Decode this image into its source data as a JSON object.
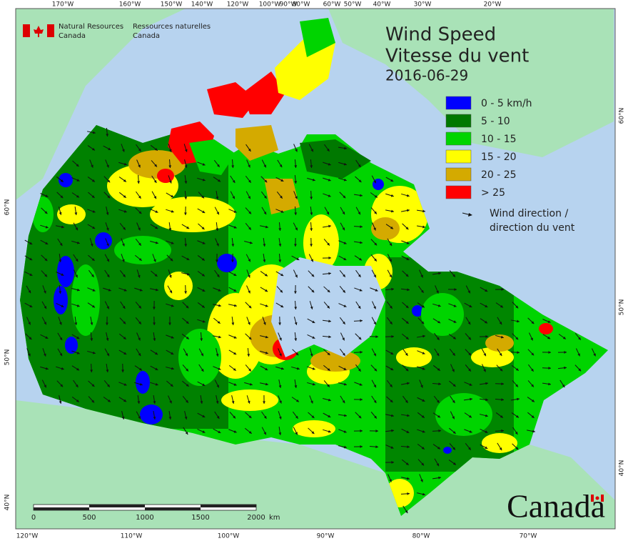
{
  "agency": {
    "en": [
      "Natural Resources",
      "Canada"
    ],
    "fr": [
      "Ressources naturelles",
      "Canada"
    ]
  },
  "title": [
    "Wind Speed",
    "Vitesse du vent"
  ],
  "date": "2016-06-29",
  "legend": {
    "items": [
      {
        "label": "0 - 5 km/h",
        "color": "#0000ff"
      },
      {
        "label": "5 - 10",
        "color": "#007800"
      },
      {
        "label": "10 - 15",
        "color": "#00d400"
      },
      {
        "label": "15 - 20",
        "color": "#ffff00"
      },
      {
        "label": "20 - 25",
        "color": "#d4aa00"
      },
      {
        "label": "> 25",
        "color": "#ff0000"
      }
    ],
    "arrow_label": [
      "Wind direction /",
      "direction du vent"
    ]
  },
  "graticule": {
    "top": [
      "170°W",
      "160°W",
      "150°W",
      "140°W",
      "120°W",
      "100°W",
      "90°W",
      "80°W",
      "60°W",
      "50°W",
      "40°W",
      "30°W",
      "20°W"
    ],
    "bottom": [
      "120°W",
      "110°W",
      "100°W",
      "90°W",
      "80°W",
      "70°W"
    ],
    "left": [
      "60°N",
      "50°N",
      "40°N"
    ],
    "right": [
      "60°N",
      "50°N",
      "40°N"
    ]
  },
  "scale_bar": {
    "labels": [
      "0",
      "500",
      "1000",
      "1500",
      "2000"
    ],
    "unit": "km"
  },
  "wordmark": "Canada"
}
